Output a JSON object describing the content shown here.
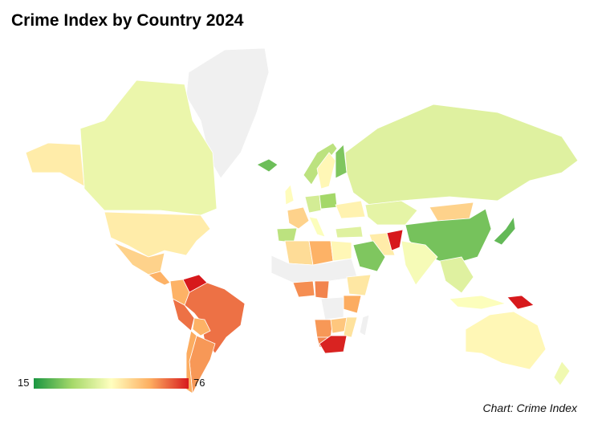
{
  "chart_data": {
    "type": "choropleth",
    "title": "Crime Index by Country 2024",
    "source": "Chart: Crime Index",
    "color_scale": {
      "min": 15,
      "max": 76,
      "min_label": "15",
      "max_label": "76",
      "colors": [
        "#1a9641",
        "#a6d96a",
        "#ffffbf",
        "#fdae61",
        "#d7191c"
      ],
      "no_data_color": "#f0f0f0"
    },
    "regions": [
      {
        "name": "Greenland",
        "value": null
      },
      {
        "name": "Canada",
        "value": 42
      },
      {
        "name": "Alaska (United States)",
        "value": 49
      },
      {
        "name": "United States",
        "value": 49
      },
      {
        "name": "Mexico",
        "value": 54
      },
      {
        "name": "Central America",
        "value": 60
      },
      {
        "name": "Venezuela",
        "value": 76
      },
      {
        "name": "Colombia",
        "value": 60
      },
      {
        "name": "Peru",
        "value": 67
      },
      {
        "name": "Brazil",
        "value": 67
      },
      {
        "name": "Bolivia",
        "value": 60
      },
      {
        "name": "Argentina",
        "value": 63
      },
      {
        "name": "Chile",
        "value": 61
      },
      {
        "name": "Iceland",
        "value": 24
      },
      {
        "name": "Norway",
        "value": 34
      },
      {
        "name": "Sweden",
        "value": 47
      },
      {
        "name": "Finland",
        "value": 26
      },
      {
        "name": "United Kingdom",
        "value": 46
      },
      {
        "name": "France",
        "value": 54
      },
      {
        "name": "Spain",
        "value": 34
      },
      {
        "name": "Germany",
        "value": 38
      },
      {
        "name": "Poland",
        "value": 30
      },
      {
        "name": "Ukraine",
        "value": 48
      },
      {
        "name": "Italy",
        "value": 45
      },
      {
        "name": "Russia",
        "value": 40
      },
      {
        "name": "Kazakhstan",
        "value": 41
      },
      {
        "name": "Mongolia",
        "value": 54
      },
      {
        "name": "China",
        "value": 25
      },
      {
        "name": "Japan",
        "value": 23
      },
      {
        "name": "Turkey",
        "value": 40
      },
      {
        "name": "Iran",
        "value": 49
      },
      {
        "name": "Afghanistan",
        "value": 76
      },
      {
        "name": "Saudi Arabia",
        "value": 26
      },
      {
        "name": "India",
        "value": 44
      },
      {
        "name": "Southeast Asia",
        "value": 40
      },
      {
        "name": "Indonesia",
        "value": 45
      },
      {
        "name": "Papua New Guinea",
        "value": 80
      },
      {
        "name": "Australia",
        "value": 47
      },
      {
        "name": "New Zealand",
        "value": 43
      },
      {
        "name": "Algeria",
        "value": 52
      },
      {
        "name": "Libya",
        "value": 60
      },
      {
        "name": "Egypt",
        "value": 47
      },
      {
        "name": "Sahel",
        "value": null
      },
      {
        "name": "Nigeria",
        "value": 64
      },
      {
        "name": "Cameroon",
        "value": 65
      },
      {
        "name": "Ethiopia",
        "value": 50
      },
      {
        "name": "Kenya",
        "value": 61
      },
      {
        "name": "DR Congo",
        "value": null
      },
      {
        "name": "Angola",
        "value": 63
      },
      {
        "name": "Namibia",
        "value": 65
      },
      {
        "name": "Zambia",
        "value": 56
      },
      {
        "name": "Mozambique",
        "value": 51
      },
      {
        "name": "South Africa",
        "value": 75
      },
      {
        "name": "Madagascar",
        "value": null
      }
    ]
  }
}
